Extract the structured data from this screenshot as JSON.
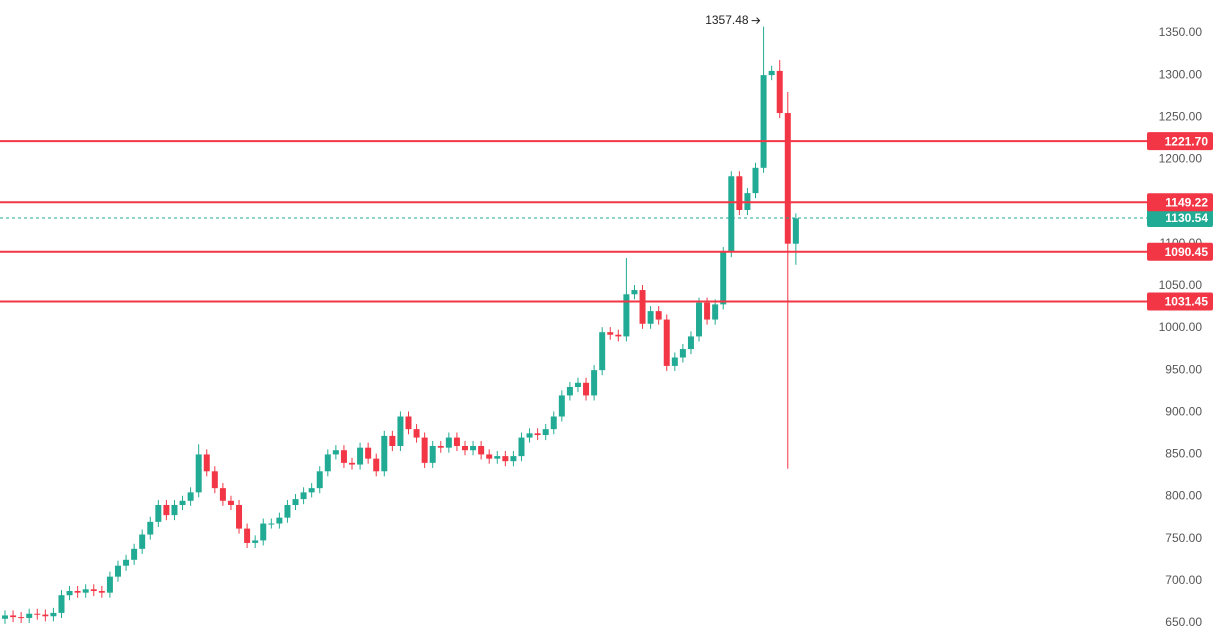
{
  "chart_data": {
    "type": "candlestick",
    "open": [
      655,
      659,
      657,
      656,
      661,
      660,
      658,
      662,
      683,
      688,
      686,
      690,
      688,
      686,
      705,
      718,
      725,
      738,
      755,
      770,
      790,
      778,
      790,
      795,
      805,
      850,
      830,
      810,
      795,
      790,
      762,
      745,
      748,
      768,
      768,
      775,
      790,
      797,
      805,
      810,
      830,
      850,
      855,
      840,
      838,
      858,
      845,
      830,
      872,
      860,
      895,
      880,
      870,
      840,
      860,
      858,
      870,
      860,
      855,
      860,
      850,
      845,
      848,
      842,
      848,
      870,
      875,
      873,
      880,
      895,
      920,
      930,
      935,
      920,
      950,
      995,
      992,
      990,
      1040,
      1045,
      1005,
      1020,
      1010,
      955,
      965,
      975,
      990,
      1030,
      1010,
      1028,
      1090,
      1180,
      1140,
      1160,
      1190,
      1300,
      1305,
      1255,
      1100
    ],
    "high": [
      665,
      665,
      663,
      667,
      667,
      666,
      668,
      689,
      694,
      694,
      696,
      696,
      694,
      711,
      724,
      731,
      744,
      761,
      776,
      796,
      796,
      796,
      801,
      811,
      862,
      856,
      836,
      816,
      801,
      796,
      768,
      754,
      774,
      774,
      781,
      796,
      803,
      811,
      816,
      836,
      856,
      861,
      861,
      846,
      864,
      864,
      851,
      878,
      878,
      901,
      901,
      886,
      876,
      866,
      866,
      876,
      876,
      866,
      866,
      866,
      856,
      854,
      854,
      854,
      876,
      881,
      881,
      886,
      901,
      926,
      936,
      941,
      941,
      956,
      1001,
      1001,
      998,
      1083,
      1051,
      1051,
      1026,
      1026,
      1016,
      971,
      981,
      996,
      1036,
      1036,
      1034,
      1096,
      1186,
      1186,
      1166,
      1196,
      1357.48,
      1311,
      1318,
      1280,
      1136
    ],
    "low": [
      649,
      651,
      650,
      650,
      654,
      652,
      652,
      656,
      677,
      680,
      680,
      682,
      680,
      680,
      699,
      712,
      719,
      732,
      749,
      764,
      772,
      772,
      784,
      789,
      799,
      824,
      804,
      789,
      784,
      756,
      739,
      739,
      742,
      762,
      762,
      769,
      784,
      791,
      799,
      804,
      824,
      844,
      834,
      832,
      832,
      839,
      824,
      824,
      854,
      854,
      874,
      864,
      834,
      834,
      852,
      852,
      854,
      849,
      849,
      844,
      839,
      839,
      836,
      836,
      842,
      864,
      867,
      867,
      874,
      889,
      914,
      924,
      914,
      914,
      944,
      986,
      984,
      984,
      1034,
      999,
      999,
      1004,
      949,
      949,
      959,
      969,
      984,
      1004,
      1004,
      1022,
      1084,
      1134,
      1134,
      1154,
      1184,
      1294,
      1249,
      833,
      1075
    ],
    "close": [
      659,
      657,
      656,
      661,
      660,
      658,
      662,
      683,
      688,
      686,
      690,
      688,
      686,
      705,
      718,
      725,
      738,
      755,
      770,
      790,
      778,
      790,
      795,
      805,
      850,
      830,
      810,
      795,
      790,
      762,
      745,
      748,
      768,
      768,
      775,
      790,
      797,
      805,
      810,
      830,
      850,
      855,
      840,
      838,
      858,
      845,
      830,
      872,
      860,
      895,
      880,
      870,
      840,
      860,
      858,
      870,
      860,
      855,
      860,
      850,
      845,
      848,
      842,
      848,
      870,
      875,
      873,
      880,
      895,
      920,
      930,
      935,
      920,
      950,
      995,
      992,
      990,
      1040,
      1045,
      1005,
      1020,
      1010,
      955,
      965,
      975,
      990,
      1030,
      1010,
      1028,
      1090,
      1180,
      1140,
      1160,
      1190,
      1300,
      1305,
      1255,
      1100,
      1130
    ],
    "up_color": "#22ab94",
    "down_color": "#f23645",
    "ylim": [
      642.9,
      1389.1
    ],
    "yticks": [
      {
        "value": 650,
        "label": "650.00"
      },
      {
        "value": 700,
        "label": "700.00"
      },
      {
        "value": 750,
        "label": "750.00"
      },
      {
        "value": 800,
        "label": "800.00"
      },
      {
        "value": 850,
        "label": "850.00"
      },
      {
        "value": 900,
        "label": "900.00"
      },
      {
        "value": 950,
        "label": "950.00"
      },
      {
        "value": 1000,
        "label": "1000.00"
      },
      {
        "value": 1050,
        "label": "1050.00"
      },
      {
        "value": 1100,
        "label": "1100.00"
      },
      {
        "value": 1150,
        "label": "1150.00"
      },
      {
        "value": 1200,
        "label": "1200.00"
      },
      {
        "value": 1250,
        "label": "1250.00"
      },
      {
        "value": 1300,
        "label": "1300.00"
      },
      {
        "value": 1350,
        "label": "1350.00"
      }
    ],
    "levels": [
      {
        "value": 1221.7,
        "label": "1221.70"
      },
      1149.22,
      1090.45,
      1031.45
    ],
    "level_color": "#f23645",
    "last_price": 1130.54,
    "last_price_color": "#22ab94",
    "high_marker_index": 94
  }
}
